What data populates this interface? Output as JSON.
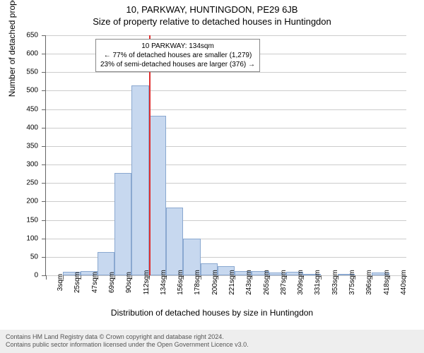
{
  "titles": {
    "line1": "10, PARKWAY, HUNTINGDON, PE29 6JB",
    "line2": "Size of property relative to detached houses in Huntingdon"
  },
  "yaxis": {
    "label": "Number of detached properties",
    "min": 0,
    "max": 650,
    "step": 50,
    "ticks": [
      0,
      50,
      100,
      150,
      200,
      250,
      300,
      350,
      400,
      450,
      500,
      550,
      600,
      650
    ]
  },
  "xaxis": {
    "label": "Distribution of detached houses by size in Huntingdon"
  },
  "chart": {
    "type": "histogram",
    "bar_fill": "#c7d8ef",
    "bar_stroke": "#8aa8d0",
    "grid_color": "#cccccc",
    "bins": [
      {
        "label": "3sqm",
        "v": 0
      },
      {
        "label": "25sqm",
        "v": 10
      },
      {
        "label": "47sqm",
        "v": 12
      },
      {
        "label": "69sqm",
        "v": 63
      },
      {
        "label": "90sqm",
        "v": 278
      },
      {
        "label": "112sqm",
        "v": 515
      },
      {
        "label": "134sqm",
        "v": 433
      },
      {
        "label": "156sqm",
        "v": 184
      },
      {
        "label": "178sqm",
        "v": 100
      },
      {
        "label": "200sqm",
        "v": 32
      },
      {
        "label": "221sqm",
        "v": 25
      },
      {
        "label": "243sqm",
        "v": 12
      },
      {
        "label": "265sqm",
        "v": 12
      },
      {
        "label": "287sqm",
        "v": 8
      },
      {
        "label": "309sqm",
        "v": 10
      },
      {
        "label": "331sqm",
        "v": 4
      },
      {
        "label": "353sqm",
        "v": 0
      },
      {
        "label": "375sqm",
        "v": 3
      },
      {
        "label": "396sqm",
        "v": 0
      },
      {
        "label": "418sqm",
        "v": 8
      },
      {
        "label": "440sqm",
        "v": 0
      }
    ]
  },
  "marker": {
    "color": "#e03030",
    "bin_index_after": 6
  },
  "callout": {
    "l1": "10 PARKWAY: 134sqm",
    "l2": "← 77% of detached houses are smaller (1,279)",
    "l3": "23% of semi-detached houses are larger (376) →"
  },
  "footer": {
    "l1": "Contains HM Land Registry data © Crown copyright and database right 2024.",
    "l2": "Contains public sector information licensed under the Open Government Licence v3.0."
  }
}
